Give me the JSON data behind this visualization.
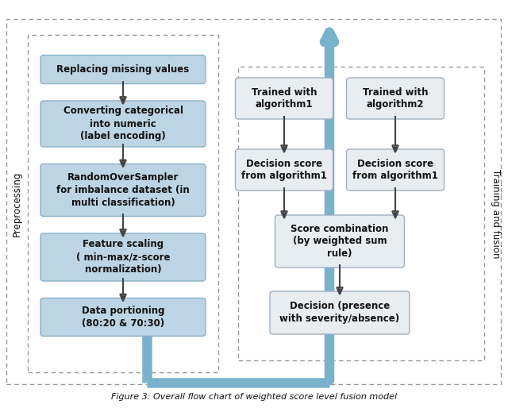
{
  "title": "Figure 3: Overall flow chart of weighted score level fusion model",
  "background_color": "#ffffff",
  "box_fill_blue": "#bdd4e4",
  "box_fill_gray": "#e8edf2",
  "box_stroke_blue": "#8ab0c8",
  "box_stroke_gray": "#a0afc0",
  "outer_dashed_stroke": "#999999",
  "arrow_color": "#444444",
  "big_arrow_color": "#7ab2cc",
  "text_color": "#111111",
  "left_boxes": [
    "Replacing missing values",
    "Converting categorical\ninto numeric\n(label encoding)",
    "RandomOverSampler\nfor imbalance dataset (in\nmulti classification)",
    "Feature scaling\n( min-max/z-score\nnormalization)",
    "Data portioning\n(80:20 & 70:30)"
  ],
  "right_top_boxes": [
    "Trained with\nalgorithm1",
    "Trained with\nalgorithm2"
  ],
  "right_mid_boxes": [
    "Decision score\nfrom algorithm1",
    "Decision score\nfrom algorithm1"
  ],
  "right_score_box": "Score combination\n(by weighted sum\nrule)",
  "right_decision_box": "Decision (presence\nwith severity/absence)",
  "left_label": "Preprocessing",
  "right_label": "Training and fusion"
}
